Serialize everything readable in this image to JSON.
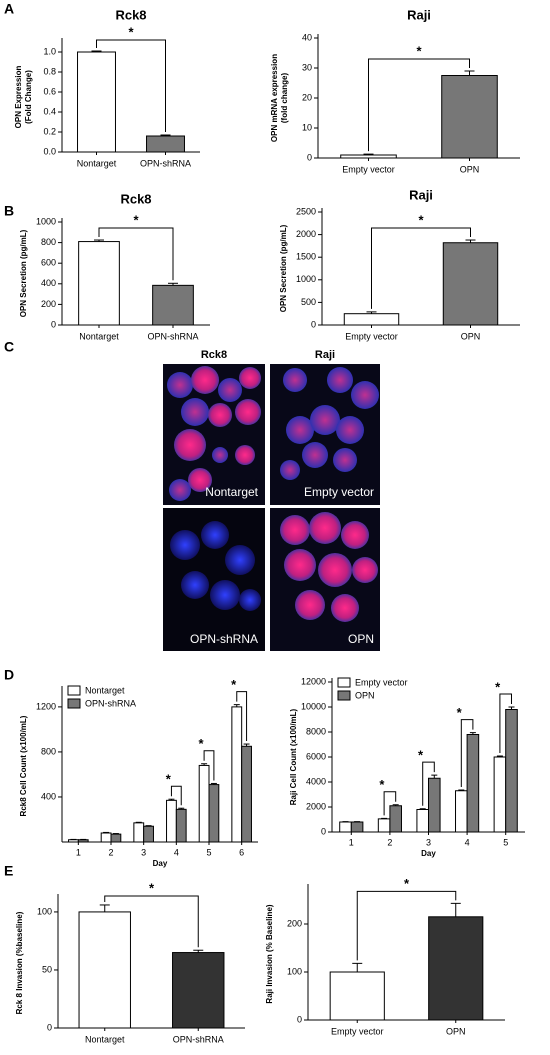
{
  "panels": [
    "A",
    "B",
    "C",
    "D",
    "E"
  ],
  "images": {
    "columns": [
      "Rck8",
      "Raji"
    ],
    "captions": [
      "Nontarget",
      "Empty vector",
      "OPN-shRNA",
      "OPN"
    ]
  },
  "chart_data": [
    {
      "type": "bar",
      "title": "Rck8",
      "ylabel": [
        "OPN Expression",
        "(Fold Change)"
      ],
      "categories": [
        "Nontarget",
        "OPN-shRNA"
      ],
      "values": [
        1.0,
        0.16
      ],
      "errors": [
        0.01,
        0.01
      ],
      "colors": [
        "#ffffff",
        "#777777"
      ],
      "ylim": [
        0,
        1.1
      ],
      "yticks": [
        {
          "value": 0,
          "label": "0.0"
        },
        {
          "value": 0.2,
          "label": "0.2"
        },
        {
          "value": 0.4,
          "label": "0.4"
        },
        {
          "value": 0.6,
          "label": "0.6"
        },
        {
          "value": 0.8,
          "label": "0.8"
        },
        {
          "value": 1,
          "label": "1.0"
        }
      ],
      "annotations": [
        {
          "text": "*",
          "categories": [
            0,
            1
          ]
        }
      ]
    },
    {
      "type": "bar",
      "title": "Raji",
      "ylabel": [
        "OPN mRNA expression",
        "(fold change)"
      ],
      "categories": [
        "Empty vector",
        "OPN"
      ],
      "values": [
        1,
        27.5
      ],
      "errors": [
        0.3,
        1.5
      ],
      "colors": [
        "#ffffff",
        "#777777"
      ],
      "ylim": [
        0,
        40
      ],
      "yticks": [
        0,
        10,
        20,
        30,
        40
      ],
      "annotations": [
        {
          "text": "*",
          "categories": [
            0,
            1
          ]
        }
      ]
    },
    {
      "type": "bar",
      "title": "Rck8",
      "ylabel": [
        "OPN Secretion (pg/mL)"
      ],
      "categories": [
        "Nontarget",
        "OPN-shRNA"
      ],
      "values": [
        810,
        385
      ],
      "errors": [
        15,
        20
      ],
      "colors": [
        "#ffffff",
        "#777777"
      ],
      "ylim": [
        0,
        1000
      ],
      "yticks": [
        0,
        200,
        400,
        600,
        800,
        1000
      ],
      "annotations": [
        {
          "text": "*",
          "categories": [
            0,
            1
          ]
        }
      ]
    },
    {
      "type": "bar",
      "title": "Raji",
      "ylabel": [
        "OPN Secretion (pg/mL)"
      ],
      "categories": [
        "Empty vector",
        "OPN"
      ],
      "values": [
        250,
        1820
      ],
      "errors": [
        40,
        60
      ],
      "colors": [
        "#ffffff",
        "#777777"
      ],
      "ylim": [
        0,
        2500
      ],
      "yticks": [
        0,
        500,
        1000,
        1500,
        2000,
        2500
      ],
      "annotations": [
        {
          "text": "*",
          "categories": [
            0,
            1
          ]
        }
      ]
    },
    {
      "type": "grouped-bar",
      "ylabel": [
        "Rck8 Cell Count (x100/mL)"
      ],
      "xlabel": "Day",
      "categories": [
        "1",
        "2",
        "3",
        "4",
        "5",
        "6"
      ],
      "series": [
        {
          "name": "Nontarget",
          "color": "#ffffff",
          "values": [
            20,
            80,
            170,
            370,
            680,
            1200
          ],
          "errors": [
            3,
            5,
            5,
            10,
            15,
            20
          ]
        },
        {
          "name": "OPN-shRNA",
          "color": "#777777",
          "values": [
            20,
            70,
            140,
            290,
            510,
            850
          ],
          "errors": [
            3,
            5,
            5,
            10,
            10,
            20
          ]
        }
      ],
      "ylim": [
        0,
        1350
      ],
      "yticks": [
        400,
        800,
        1200
      ],
      "legend": "upper left",
      "annotations": [
        {
          "text": "*",
          "at": 3
        },
        {
          "text": "*",
          "at": 4
        },
        {
          "text": "*",
          "at": 5
        }
      ]
    },
    {
      "type": "grouped-bar",
      "ylabel": [
        "Raji Cell Count (x100/mL)"
      ],
      "xlabel": "Day",
      "categories": [
        "1",
        "2",
        "3",
        "4",
        "5"
      ],
      "series": [
        {
          "name": "Empty vector",
          "color": "#ffffff",
          "values": [
            800,
            1050,
            1800,
            3300,
            6000
          ],
          "errors": [
            30,
            40,
            60,
            60,
            80
          ]
        },
        {
          "name": "OPN",
          "color": "#777777",
          "values": [
            800,
            2100,
            4300,
            7800,
            9800
          ],
          "errors": [
            30,
            80,
            250,
            150,
            200
          ]
        }
      ],
      "ylim": [
        0,
        12000
      ],
      "yticks": [
        0,
        2000,
        4000,
        6000,
        8000,
        10000,
        12000
      ],
      "legend": "upper left",
      "annotations": [
        {
          "text": "*",
          "at": 1
        },
        {
          "text": "*",
          "at": 2
        },
        {
          "text": "*",
          "at": 3
        },
        {
          "text": "*",
          "at": 4
        }
      ]
    },
    {
      "type": "bar",
      "ylabel": [
        "Rck 8 Invasion (%baseline)"
      ],
      "categories": [
        "Nontarget",
        "OPN-shRNA"
      ],
      "values": [
        100,
        65
      ],
      "errors": [
        6,
        2
      ],
      "colors": [
        "#ffffff",
        "#333333"
      ],
      "ylim": [
        0,
        112
      ],
      "yticks": [
        0,
        50,
        100
      ],
      "annotations": [
        {
          "text": "*",
          "categories": [
            0,
            1
          ]
        }
      ]
    },
    {
      "type": "bar",
      "ylabel": [
        "Raji Invasion (% Baseline)"
      ],
      "categories": [
        "Empty vector",
        "OPN"
      ],
      "values": [
        100,
        215
      ],
      "errors": [
        18,
        28
      ],
      "colors": [
        "#ffffff",
        "#333333"
      ],
      "ylim": [
        0,
        275
      ],
      "yticks": [
        0,
        100,
        200
      ],
      "annotations": [
        {
          "text": "*",
          "categories": [
            0,
            1
          ]
        }
      ]
    }
  ]
}
